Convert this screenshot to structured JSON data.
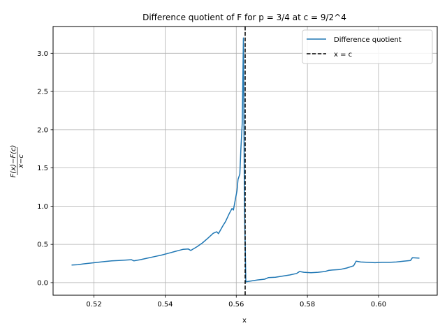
{
  "chart_data": {
    "type": "line",
    "title": "Difference quotient of F for p = 3/4 at c = 9/2^4",
    "xlabel": "x",
    "ylabel": "F(x) − F(c)  /  x − c",
    "ylabel_numerator": "F(x)−F(c)",
    "ylabel_denominator": "x−c",
    "xlim": [
      0.5085,
      0.6165
    ],
    "ylim": [
      -0.165,
      3.35
    ],
    "xticks": [
      0.52,
      0.54,
      0.56,
      0.58,
      0.6
    ],
    "xtick_labels": [
      "0.52",
      "0.54",
      "0.56",
      "0.58",
      "0.60"
    ],
    "yticks": [
      0.0,
      0.5,
      1.0,
      1.5,
      2.0,
      2.5,
      3.0
    ],
    "ytick_labels": [
      "0.0",
      "0.5",
      "1.0",
      "1.5",
      "2.0",
      "2.5",
      "3.0"
    ],
    "grid": true,
    "legend_position": "top-right",
    "vline": {
      "x": 0.5625,
      "label": "x = c",
      "color": "#000000",
      "style": "dashed"
    },
    "series": [
      {
        "name": "Difference quotient",
        "color": "#1f77b4",
        "x": [
          0.5137,
          0.5155,
          0.517,
          0.519,
          0.521,
          0.523,
          0.525,
          0.527,
          0.529,
          0.5305,
          0.5312,
          0.533,
          0.535,
          0.537,
          0.539,
          0.541,
          0.543,
          0.545,
          0.5465,
          0.5472,
          0.549,
          0.5505,
          0.552,
          0.5535,
          0.5545,
          0.555,
          0.5562,
          0.557,
          0.558,
          0.5588,
          0.5592,
          0.5598,
          0.5602,
          0.5605,
          0.561,
          0.5613,
          0.5617,
          0.562,
          0.5623,
          0.5627,
          0.5633,
          0.564,
          0.566,
          0.568,
          0.569,
          0.571,
          0.573,
          0.575,
          0.577,
          0.5778,
          0.579,
          0.581,
          0.583,
          0.585,
          0.586,
          0.587,
          0.589,
          0.591,
          0.593,
          0.5937,
          0.595,
          0.597,
          0.599,
          0.601,
          0.603,
          0.605,
          0.607,
          0.609,
          0.6095,
          0.6115
        ],
        "y": [
          0.23,
          0.235,
          0.245,
          0.255,
          0.265,
          0.275,
          0.285,
          0.29,
          0.295,
          0.3,
          0.285,
          0.3,
          0.32,
          0.34,
          0.36,
          0.385,
          0.41,
          0.435,
          0.44,
          0.42,
          0.47,
          0.52,
          0.58,
          0.645,
          0.665,
          0.64,
          0.74,
          0.8,
          0.9,
          0.97,
          0.95,
          1.1,
          1.2,
          1.35,
          1.42,
          1.75,
          2.1,
          3.2,
          1.0,
          0.01,
          0.015,
          0.02,
          0.035,
          0.045,
          0.065,
          0.07,
          0.085,
          0.1,
          0.12,
          0.145,
          0.135,
          0.13,
          0.135,
          0.145,
          0.16,
          0.165,
          0.17,
          0.19,
          0.22,
          0.28,
          0.27,
          0.265,
          0.26,
          0.265,
          0.265,
          0.27,
          0.28,
          0.29,
          0.325,
          0.32
        ]
      }
    ]
  }
}
